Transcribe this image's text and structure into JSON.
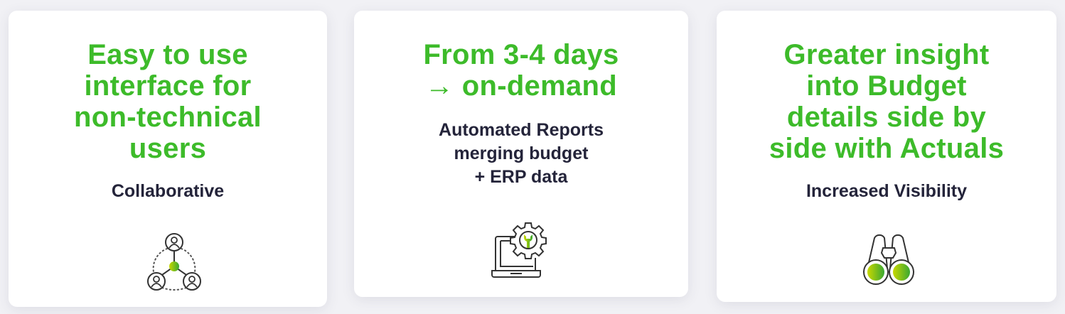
{
  "accent_color": "#3dbb2a",
  "cards": [
    {
      "title": "Easy to use\ninterface for\nnon-technical\nusers",
      "subtitle": "Collaborative",
      "icon": "collaboration-network-icon"
    },
    {
      "title": "From 3-4 days\n→ on-demand",
      "subtitle": "Automated Reports\nmerging budget\n+ ERP data",
      "icon": "laptop-gear-wrench-icon"
    },
    {
      "title": "Greater insight\ninto Budget\ndetails side by\nside with Actuals",
      "subtitle": "Increased Visibility",
      "icon": "binoculars-icon"
    }
  ]
}
